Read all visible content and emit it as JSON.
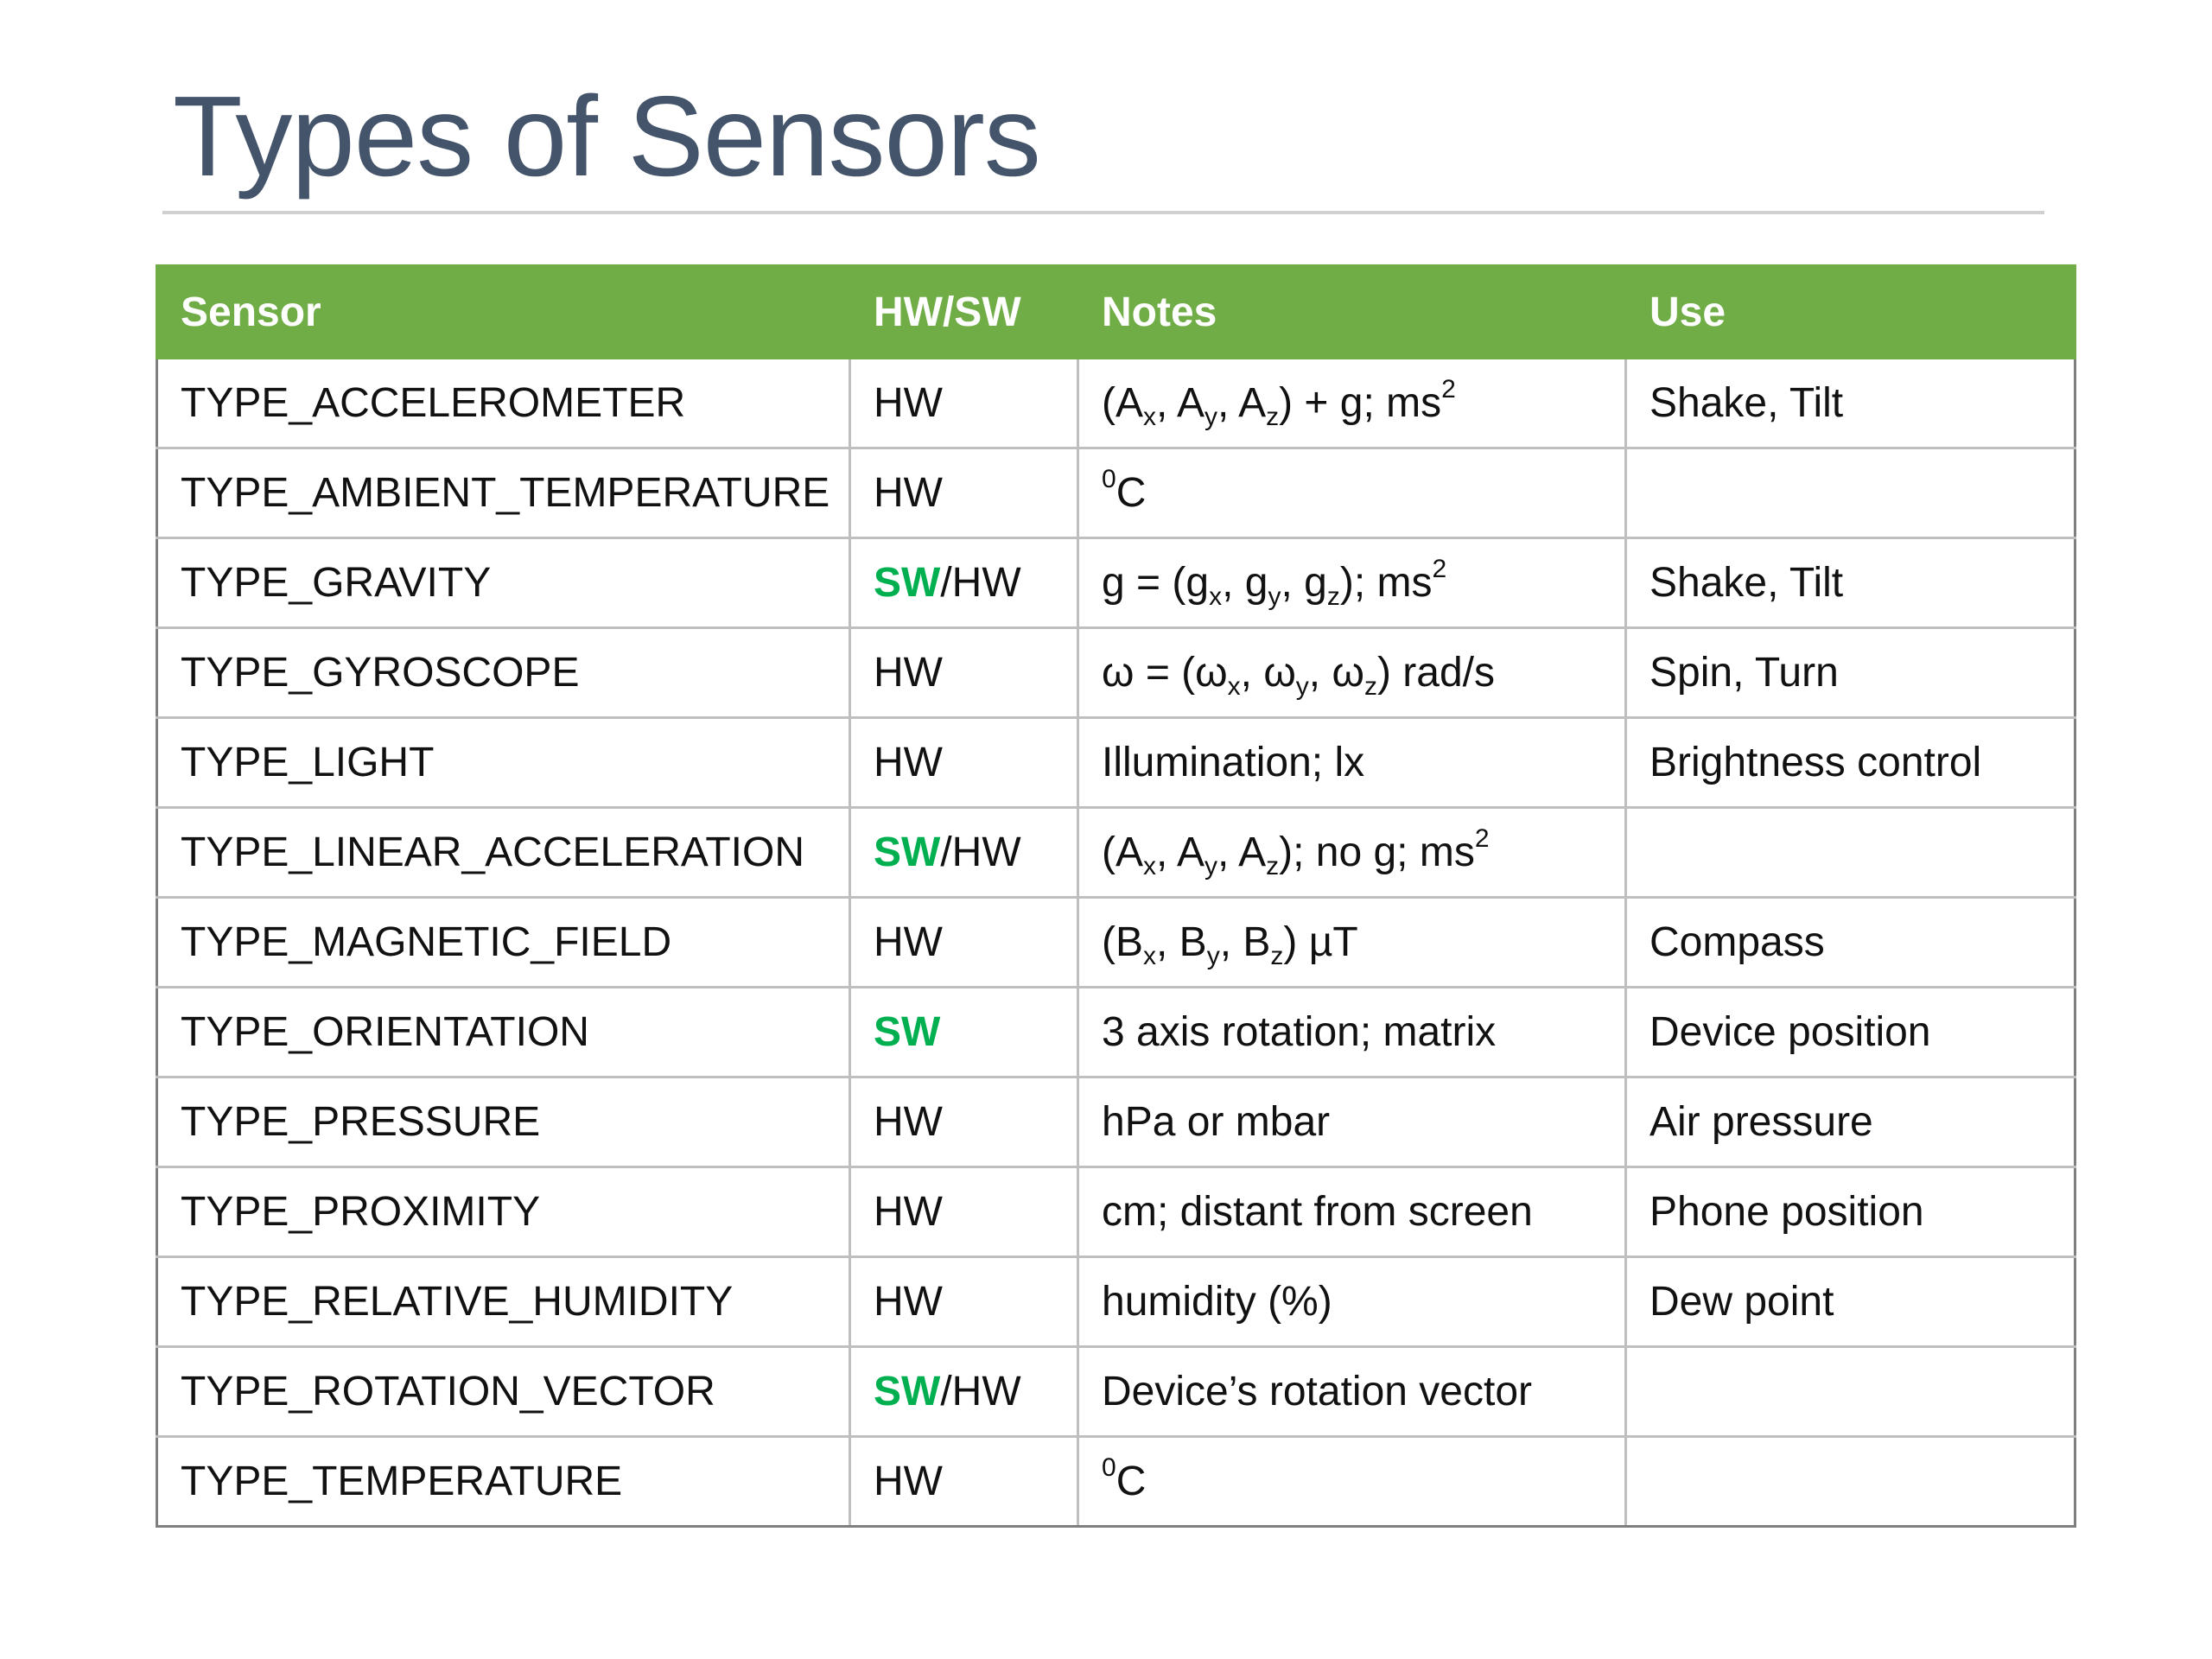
{
  "slide": {
    "title": "Types of Sensors"
  },
  "colors": {
    "header_green": "#70ad47",
    "software_green": "#00b050",
    "title_slate": "#44546a"
  },
  "table": {
    "headers": [
      "Sensor",
      "HW/SW",
      "Notes",
      "Use"
    ],
    "rows": [
      {
        "sensor": "TYPE_ACCELEROMETER",
        "hwsw": {
          "sw": "",
          "rest": "HW"
        },
        "notes": [
          "(A",
          {
            "sub": "x"
          },
          ", A",
          {
            "sub": "y"
          },
          ", A",
          {
            "sub": "z"
          },
          ") + g; ms",
          {
            "sup": "2"
          }
        ],
        "use": "Shake, Tilt"
      },
      {
        "sensor": "TYPE_AMBIENT_TEMPERATURE",
        "hwsw": {
          "sw": "",
          "rest": "HW"
        },
        "notes": [
          {
            "sup": "0"
          },
          "C"
        ],
        "use": ""
      },
      {
        "sensor": "TYPE_GRAVITY",
        "hwsw": {
          "sw": "SW",
          "rest": "/HW"
        },
        "notes": [
          "g = (g",
          {
            "sub": "x"
          },
          ", g",
          {
            "sub": "y"
          },
          ", g",
          {
            "sub": "z"
          },
          "); ms",
          {
            "sup": "2"
          }
        ],
        "use": "Shake, Tilt"
      },
      {
        "sensor": "TYPE_GYROSCOPE",
        "hwsw": {
          "sw": "",
          "rest": "HW"
        },
        "notes": [
          "ω = (ω",
          {
            "sub": "x"
          },
          ", ω",
          {
            "sub": "y"
          },
          ", ω",
          {
            "sub": "z"
          },
          ") rad/s"
        ],
        "use": "Spin, Turn"
      },
      {
        "sensor": "TYPE_LIGHT",
        "hwsw": {
          "sw": "",
          "rest": "HW"
        },
        "notes": [
          "Illumination; lx"
        ],
        "use": "Brightness control"
      },
      {
        "sensor": "TYPE_LINEAR_ACCELERATION",
        "hwsw": {
          "sw": "SW",
          "rest": "/HW"
        },
        "notes": [
          "(A",
          {
            "sub": "x"
          },
          ", A",
          {
            "sub": "y"
          },
          ", A",
          {
            "sub": "z"
          },
          "); no g; ms",
          {
            "sup": "2"
          }
        ],
        "use": ""
      },
      {
        "sensor": "TYPE_MAGNETIC_FIELD",
        "hwsw": {
          "sw": "",
          "rest": "HW"
        },
        "notes": [
          "(B",
          {
            "sub": "x"
          },
          ", B",
          {
            "sub": "y"
          },
          ", B",
          {
            "sub": "z"
          },
          ") µT"
        ],
        "use": "Compass"
      },
      {
        "sensor": "TYPE_ORIENTATION",
        "hwsw": {
          "sw": "SW",
          "rest": ""
        },
        "notes": [
          "3 axis rotation; matrix"
        ],
        "use": "Device position"
      },
      {
        "sensor": "TYPE_PRESSURE",
        "hwsw": {
          "sw": "",
          "rest": "HW"
        },
        "notes": [
          "hPa or mbar"
        ],
        "use": "Air pressure"
      },
      {
        "sensor": "TYPE_PROXIMITY",
        "hwsw": {
          "sw": "",
          "rest": "HW"
        },
        "notes": [
          "cm; distant from screen"
        ],
        "use": "Phone position"
      },
      {
        "sensor": "TYPE_RELATIVE_HUMIDITY",
        "hwsw": {
          "sw": "",
          "rest": "HW"
        },
        "notes": [
          "humidity (%)"
        ],
        "use": "Dew point"
      },
      {
        "sensor": "TYPE_ROTATION_VECTOR",
        "hwsw": {
          "sw": "SW",
          "rest": "/HW"
        },
        "notes": [
          "Device’s rotation vector"
        ],
        "use": ""
      },
      {
        "sensor": "TYPE_TEMPERATURE",
        "hwsw": {
          "sw": "",
          "rest": "HW"
        },
        "notes": [
          {
            "sup": "0"
          },
          "C"
        ],
        "use": ""
      }
    ]
  }
}
